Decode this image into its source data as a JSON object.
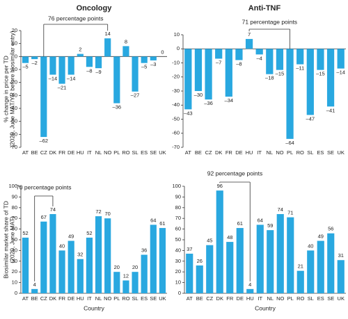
{
  "chart_data": [
    {
      "type": "bar",
      "title": "Oncology",
      "ylabel": [
        "% change in price per TD",
        "(2020, June MAT/YR before biosimilar entry)"
      ],
      "categories": [
        "AT",
        "BE",
        "CZ",
        "DK",
        "FR",
        "DE",
        "HU",
        "IT",
        "NL",
        "NO",
        "PL",
        "RO",
        "SL",
        "ES",
        "SE",
        "UK"
      ],
      "values": [
        -5,
        -2,
        -62,
        -14,
        -21,
        -14,
        2,
        -8,
        -9,
        14,
        -36,
        8,
        -27,
        -5,
        -3,
        0
      ],
      "value_labels": [
        "–5",
        "–2",
        "–62",
        "–14",
        "–21",
        "–14",
        "2",
        "–8",
        "–9",
        "14",
        "–36",
        "8",
        "–27",
        "–5",
        "–3",
        "0"
      ],
      "color": "#29a8e0",
      "ylim": [
        -70,
        20
      ],
      "yticks": [
        -70,
        -60,
        -50,
        -40,
        -30,
        -20,
        -10,
        0,
        10,
        20
      ],
      "annotation": "76 percentage points"
    },
    {
      "type": "bar",
      "title": "Anti-TNF",
      "categories": [
        "AT",
        "BE",
        "CZ",
        "DK",
        "FR",
        "DE",
        "HU",
        "IT",
        "NL",
        "NO",
        "PL",
        "RO",
        "SL",
        "ES",
        "SE",
        "UK"
      ],
      "values": [
        -43,
        -30,
        -36,
        -7,
        -34,
        -8,
        7,
        -4,
        -18,
        -15,
        -64,
        -11,
        -47,
        -15,
        -41,
        -14
      ],
      "value_labels": [
        "–43",
        "–30",
        "–36",
        "–7",
        "–34",
        "–8",
        "7",
        "–4",
        "–18",
        "–15",
        "–64",
        "–11",
        "–47",
        "–15",
        "–41",
        "–14"
      ],
      "color": "#29a8e0",
      "ylim": [
        -70,
        10
      ],
      "yticks": [
        -70,
        -60,
        -50,
        -40,
        -30,
        -20,
        -10,
        0,
        10
      ],
      "annotation": "71 percentage points"
    },
    {
      "type": "bar",
      "ylabel": [
        "Biosimilar market share of TD",
        "(2020, June MAT)"
      ],
      "xlabel": "Country",
      "categories": [
        "AT",
        "BE",
        "CZ",
        "DK",
        "FR",
        "DE",
        "HU",
        "IT",
        "NL",
        "NO",
        "PL",
        "RO",
        "SL",
        "ES",
        "SE",
        "UK"
      ],
      "values": [
        52,
        4,
        67,
        74,
        40,
        49,
        32,
        52,
        72,
        70,
        20,
        12,
        20,
        36,
        64,
        61
      ],
      "color": "#29a8e0",
      "ylim": [
        0,
        100
      ],
      "yticks": [
        0,
        10,
        20,
        30,
        40,
        50,
        60,
        70,
        80,
        90,
        100
      ],
      "annotation": "70 percentage points"
    },
    {
      "type": "bar",
      "xlabel": "Country",
      "categories": [
        "AT",
        "BE",
        "CZ",
        "DK",
        "FR",
        "DE",
        "HU",
        "IT",
        "NL",
        "NO",
        "PL",
        "RO",
        "SL",
        "ES",
        "SE",
        "UK"
      ],
      "values": [
        37,
        26,
        45,
        96,
        48,
        61,
        4,
        64,
        59,
        74,
        71,
        21,
        40,
        49,
        56,
        31
      ],
      "color": "#29a8e0",
      "ylim": [
        0,
        100
      ],
      "yticks": [
        0,
        10,
        20,
        30,
        40,
        50,
        60,
        70,
        80,
        90,
        100
      ],
      "annotation": "92 percentage points"
    }
  ]
}
